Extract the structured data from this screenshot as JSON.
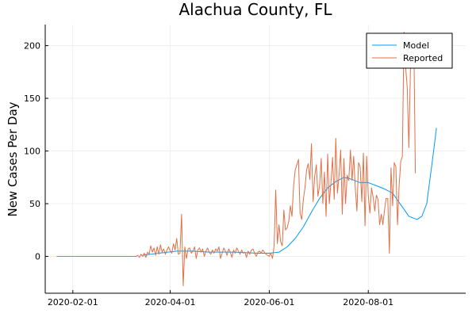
{
  "chart_data": {
    "type": "line",
    "title": "Alachua County, FL",
    "xlabel": "",
    "ylabel": "New Cases Per Day",
    "xlim": [
      "2020-01-15",
      "2020-09-30"
    ],
    "ylim": [
      -35,
      220
    ],
    "x_ticks": [
      "2020-02-01",
      "2020-04-01",
      "2020-06-01",
      "2020-08-01"
    ],
    "y_ticks": [
      0,
      50,
      100,
      150,
      200
    ],
    "grid": true,
    "legend_position": "top-right",
    "series": [
      {
        "name": "Model",
        "color": "#009af9",
        "start_date": "2020-03-15",
        "end_date": "2020-09-12",
        "anchors": [
          [
            "2020-03-15",
            1
          ],
          [
            "2020-03-25",
            3
          ],
          [
            "2020-04-05",
            5
          ],
          [
            "2020-04-15",
            5
          ],
          [
            "2020-04-25",
            4
          ],
          [
            "2020-05-10",
            4
          ],
          [
            "2020-05-25",
            3
          ],
          [
            "2020-06-01",
            3
          ],
          [
            "2020-06-07",
            4
          ],
          [
            "2020-06-12",
            9
          ],
          [
            "2020-06-17",
            17
          ],
          [
            "2020-06-22",
            28
          ],
          [
            "2020-06-27",
            42
          ],
          [
            "2020-07-02",
            55
          ],
          [
            "2020-07-07",
            65
          ],
          [
            "2020-07-12",
            71
          ],
          [
            "2020-07-17",
            75
          ],
          [
            "2020-07-22",
            73
          ],
          [
            "2020-07-27",
            70
          ],
          [
            "2020-08-01",
            70
          ],
          [
            "2020-08-06",
            67
          ],
          [
            "2020-08-11",
            64
          ],
          [
            "2020-08-16",
            60
          ],
          [
            "2020-08-21",
            49
          ],
          [
            "2020-08-26",
            38
          ],
          [
            "2020-08-31",
            35
          ],
          [
            "2020-09-03",
            38
          ],
          [
            "2020-09-06",
            50
          ],
          [
            "2020-09-09",
            85
          ],
          [
            "2020-09-12",
            122
          ]
        ]
      },
      {
        "name": "Reported",
        "color": "#e26f46",
        "start_date": "2020-01-22",
        "end_date": "2020-09-20",
        "values": [
          0,
          0,
          0,
          0,
          0,
          0,
          0,
          0,
          0,
          0,
          0,
          0,
          0,
          0,
          0,
          0,
          0,
          0,
          0,
          0,
          0,
          0,
          0,
          0,
          0,
          0,
          0,
          0,
          0,
          0,
          0,
          0,
          0,
          0,
          0,
          0,
          0,
          0,
          0,
          0,
          0,
          0,
          0,
          0,
          0,
          0,
          0,
          0,
          0,
          0,
          1,
          -1,
          2,
          0,
          3,
          -1,
          4,
          2,
          10,
          4,
          8,
          1,
          9,
          2,
          11,
          4,
          7,
          2,
          6,
          9,
          5,
          3,
          12,
          6,
          17,
          2,
          3,
          40,
          -28,
          9,
          -2,
          7,
          8,
          3,
          5,
          9,
          -2,
          6,
          8,
          4,
          7,
          0,
          5,
          8,
          4,
          2,
          6,
          3,
          7,
          5,
          9,
          -2,
          3,
          8,
          5,
          1,
          7,
          4,
          -1,
          6,
          3,
          8,
          5,
          2,
          6,
          3,
          4,
          -1,
          5,
          2,
          6,
          7,
          3,
          0,
          4,
          5,
          3,
          6,
          4,
          2,
          1,
          0,
          3,
          -2,
          10,
          63,
          12,
          30,
          14,
          10,
          44,
          25,
          27,
          33,
          48,
          38,
          67,
          82,
          87,
          92,
          41,
          35,
          54,
          65,
          82,
          88,
          73,
          107,
          52,
          76,
          87,
          57,
          67,
          93,
          50,
          80,
          38,
          97,
          50,
          70,
          94,
          54,
          112,
          60,
          77,
          101,
          40,
          93,
          50,
          77,
          72,
          101,
          72,
          95,
          65,
          43,
          89,
          85,
          52,
          98,
          29,
          95,
          58,
          41,
          65,
          56,
          43,
          58,
          54,
          30,
          40,
          30,
          44,
          55,
          55,
          3,
          84,
          48,
          89,
          85,
          30,
          67,
          90,
          95,
          213,
          180,
          160,
          103,
          180,
          190,
          212,
          79
        ]
      }
    ]
  }
}
